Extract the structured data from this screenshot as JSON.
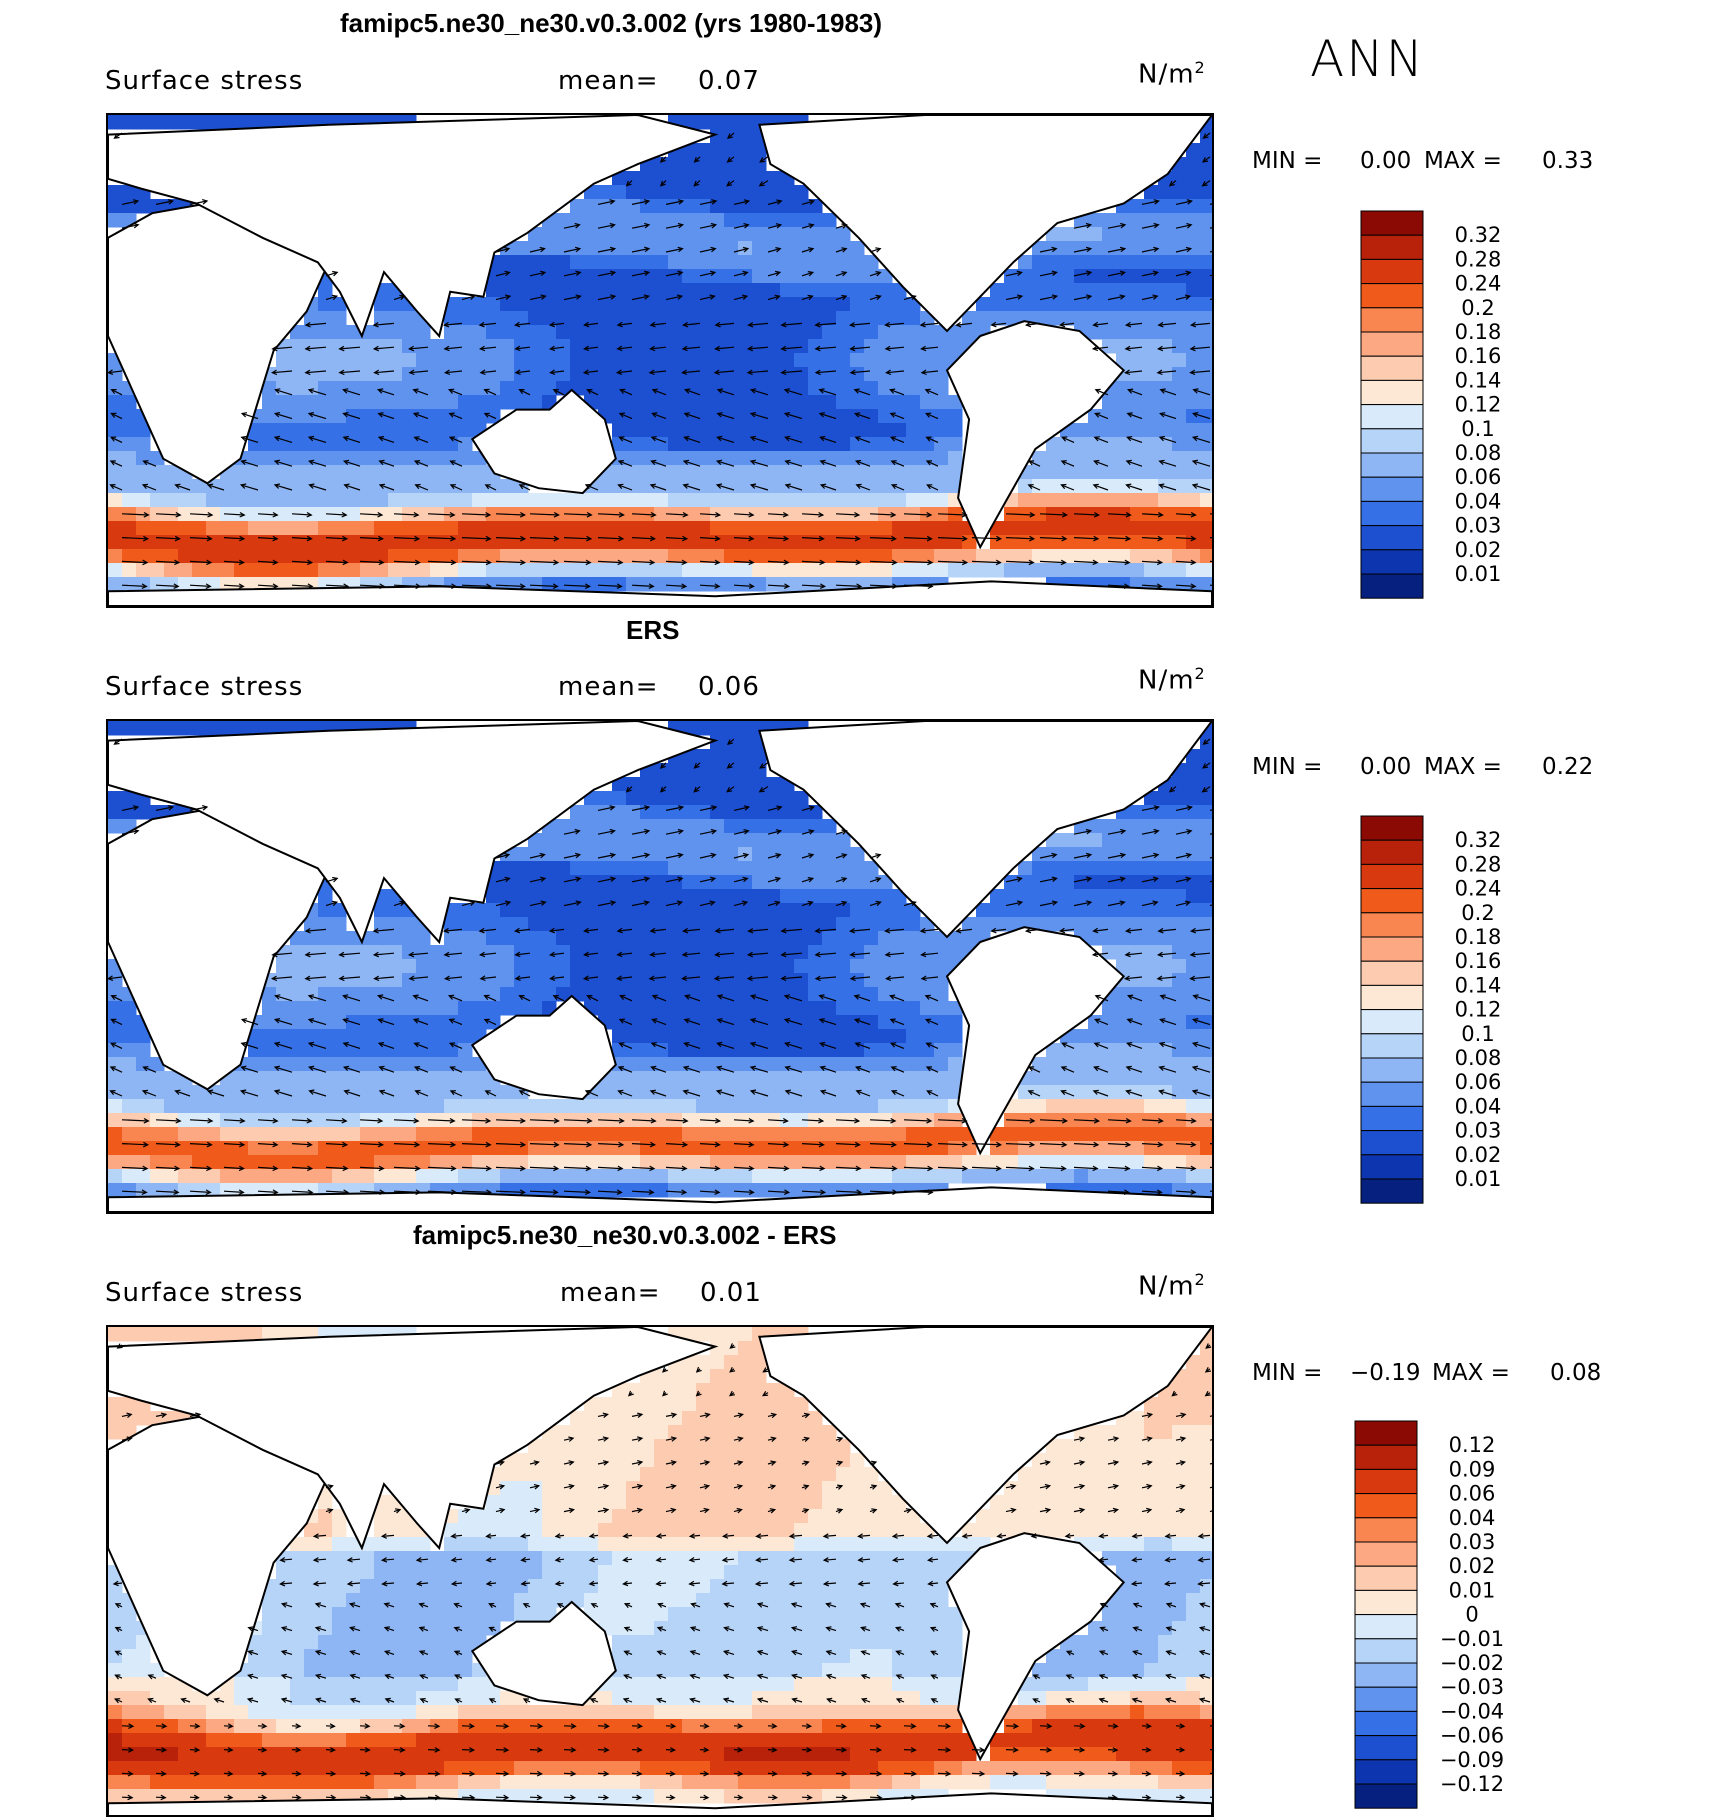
{
  "season": "ANN",
  "chart_data": [
    {
      "type": "heatmap",
      "title": "famipc5.ne30_ne30.v0.3.002 (yrs 1980-1983)",
      "variable": "Surface stress",
      "mean_label": "mean=",
      "mean_value": "0.07",
      "units_base": "N/m",
      "units_exp": "2",
      "min_label": "MIN =",
      "min_value": "0.00",
      "max_label": "MAX =",
      "max_value": "0.33",
      "colorbar_levels": [
        "0.32",
        "0.28",
        "0.24",
        "0.2",
        "0.18",
        "0.16",
        "0.14",
        "0.12",
        "0.1",
        "0.08",
        "0.06",
        "0.04",
        "0.03",
        "0.02",
        "0.01"
      ],
      "colorbar_colors": [
        "#8b0a03",
        "#b8210a",
        "#d9390e",
        "#f05a1a",
        "#f98551",
        "#fba883",
        "#fdcbb0",
        "#fde8d6",
        "#d9ebfb",
        "#b6d3f8",
        "#8fb6f4",
        "#5f93ee",
        "#3670e6",
        "#1d4fd1",
        "#0e35b0",
        "#05207f"
      ]
    },
    {
      "type": "heatmap",
      "title": "ERS",
      "variable": "Surface stress",
      "mean_label": "mean=",
      "mean_value": "0.06",
      "units_base": "N/m",
      "units_exp": "2",
      "min_label": "MIN =",
      "min_value": "0.00",
      "max_label": "MAX =",
      "max_value": "0.22",
      "colorbar_levels": [
        "0.32",
        "0.28",
        "0.24",
        "0.2",
        "0.18",
        "0.16",
        "0.14",
        "0.12",
        "0.1",
        "0.08",
        "0.06",
        "0.04",
        "0.03",
        "0.02",
        "0.01"
      ],
      "colorbar_colors": [
        "#8b0a03",
        "#b8210a",
        "#d9390e",
        "#f05a1a",
        "#f98551",
        "#fba883",
        "#fdcbb0",
        "#fde8d6",
        "#d9ebfb",
        "#b6d3f8",
        "#8fb6f4",
        "#5f93ee",
        "#3670e6",
        "#1d4fd1",
        "#0e35b0",
        "#05207f"
      ]
    },
    {
      "type": "heatmap",
      "title": "famipc5.ne30_ne30.v0.3.002 - ERS",
      "variable": "Surface stress",
      "mean_label": "mean=",
      "mean_value": "0.01",
      "units_base": "N/m",
      "units_exp": "2",
      "min_label": "MIN =",
      "min_value": "−0.19",
      "max_label": "MAX =",
      "max_value": "0.08",
      "colorbar_levels": [
        "0.12",
        "0.09",
        "0.06",
        "0.04",
        "0.03",
        "0.02",
        "0.01",
        "0",
        "−0.01",
        "−0.02",
        "−0.03",
        "−0.04",
        "−0.06",
        "−0.09",
        "−0.12"
      ],
      "colorbar_colors": [
        "#8b0a03",
        "#b8210a",
        "#d9390e",
        "#f05a1a",
        "#f98551",
        "#fba883",
        "#fdcbb0",
        "#fde8d6",
        "#d9ebfb",
        "#b6d3f8",
        "#8fb6f4",
        "#5f93ee",
        "#3670e6",
        "#1d4fd1",
        "#0e35b0",
        "#05207f"
      ]
    }
  ]
}
